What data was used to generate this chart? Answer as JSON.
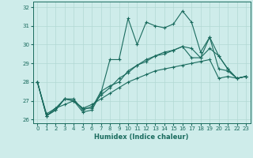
{
  "xlabel": "Humidex (Indice chaleur)",
  "ylabel": "",
  "xlim": [
    -0.5,
    23.5
  ],
  "ylim": [
    25.8,
    32.3
  ],
  "xticks": [
    0,
    1,
    2,
    3,
    4,
    5,
    6,
    7,
    8,
    9,
    10,
    11,
    12,
    13,
    14,
    15,
    16,
    17,
    18,
    19,
    20,
    21,
    22,
    23
  ],
  "yticks": [
    26,
    27,
    28,
    29,
    30,
    31,
    32
  ],
  "bg_color": "#ceecea",
  "grid_color": "#b2d8d4",
  "line_color": "#1a6b5e",
  "series": [
    [
      28.0,
      26.2,
      26.5,
      27.1,
      27.0,
      26.4,
      26.5,
      27.4,
      29.2,
      29.2,
      31.4,
      30.0,
      31.2,
      31.0,
      30.9,
      31.1,
      31.8,
      31.2,
      29.6,
      30.4,
      28.7,
      28.6,
      28.2,
      28.3
    ],
    [
      28.0,
      26.2,
      26.5,
      27.1,
      27.0,
      26.6,
      26.6,
      27.5,
      27.8,
      28.0,
      28.6,
      28.9,
      29.1,
      29.4,
      29.6,
      29.7,
      29.9,
      29.3,
      29.3,
      30.4,
      29.4,
      28.7,
      28.2,
      28.3
    ],
    [
      28.0,
      26.2,
      26.6,
      27.1,
      27.1,
      26.5,
      26.7,
      27.3,
      27.7,
      28.2,
      28.5,
      28.9,
      29.2,
      29.4,
      29.5,
      29.7,
      29.9,
      29.8,
      29.3,
      29.8,
      29.4,
      28.7,
      28.2,
      28.3
    ],
    [
      28.0,
      26.3,
      26.6,
      26.8,
      27.0,
      26.6,
      26.8,
      27.1,
      27.4,
      27.7,
      28.0,
      28.2,
      28.4,
      28.6,
      28.7,
      28.8,
      28.9,
      29.0,
      29.1,
      29.2,
      28.2,
      28.3,
      28.2,
      28.3
    ]
  ]
}
